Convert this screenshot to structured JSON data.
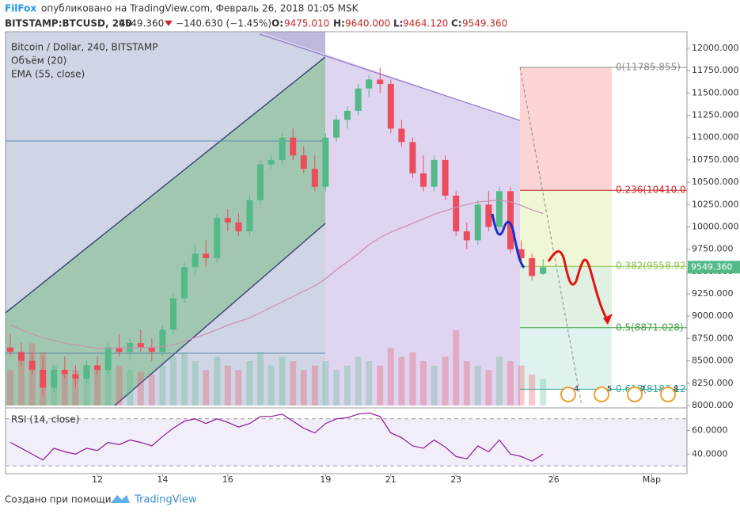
{
  "header": {
    "author": "FilFox",
    "published": "опубликовано на TradingView.com, Февраль 26, 2018 01:05 MSK",
    "symbol": "BITSTAMP:BTCUSD, 240",
    "last": "9549.360",
    "change": "−140.630 (−1.45%)",
    "o_label": "O:",
    "o": "9475.010",
    "h_label": "H:",
    "h": "9640.000",
    "l_label": "L:",
    "l": "9464.120",
    "c_label": "C:",
    "c": "9549.360"
  },
  "footer": {
    "created": "Создано при помощи",
    "brand": "TradingView"
  },
  "chart_data": {
    "type": "candlestick",
    "title": "Bitcoin / Dollar, 240, BITSTAMP",
    "volume_label": "Объём (20)",
    "ema_label": "EMA (55, close)",
    "rsi_label": "RSI (14, close)",
    "up_color": "#53b987",
    "down_color": "#eb4d5c",
    "ema_color": "#c98fae",
    "rsi_color": "#8e1599",
    "x": [
      9.33,
      9.67,
      10,
      10.33,
      10.67,
      11,
      11.33,
      11.67,
      12,
      12.33,
      12.67,
      13,
      13.33,
      13.67,
      14,
      14.33,
      14.67,
      15,
      15.33,
      15.67,
      16,
      16.33,
      16.67,
      17,
      17.33,
      17.67,
      18,
      18.33,
      18.67,
      19,
      19.33,
      19.67,
      20,
      20.33,
      20.67,
      21,
      21.33,
      21.67,
      22,
      22.33,
      22.67,
      23,
      23.33,
      23.67,
      24,
      24.33,
      24.67,
      25,
      25.33,
      25.67
    ],
    "open": [
      8650,
      8600,
      8500,
      8400,
      8200,
      8400,
      8350,
      8300,
      8450,
      8400,
      8650,
      8600,
      8700,
      8650,
      8600,
      8850,
      9200,
      9550,
      9700,
      9650,
      10100,
      10050,
      9950,
      10300,
      10700,
      10750,
      11000,
      10800,
      10650,
      10450,
      11000,
      11200,
      11300,
      11550,
      11650,
      11600,
      11100,
      10950,
      10600,
      10450,
      10750,
      10350,
      9950,
      9850,
      10250,
      10000,
      10400,
      9750,
      9650,
      9475.01
    ],
    "high": [
      8800,
      8700,
      8600,
      8550,
      8450,
      8550,
      8450,
      8500,
      8550,
      8700,
      8800,
      8750,
      8850,
      8750,
      8900,
      9250,
      9600,
      9800,
      9850,
      10150,
      10200,
      10150,
      10350,
      10750,
      10800,
      11050,
      11100,
      10900,
      10800,
      11050,
      11250,
      11350,
      11600,
      11700,
      11780,
      11650,
      11200,
      11000,
      10800,
      10800,
      10800,
      10400,
      10050,
      10300,
      10400,
      10450,
      10450,
      9850,
      9700,
      9640
    ],
    "low": [
      8550,
      8450,
      8350,
      8100,
      8150,
      8300,
      8200,
      8250,
      8350,
      8350,
      8550,
      8500,
      8600,
      8500,
      8550,
      8800,
      9150,
      9450,
      9550,
      9600,
      9950,
      9900,
      9900,
      10250,
      10650,
      10700,
      10750,
      10600,
      10400,
      10400,
      10950,
      11100,
      11250,
      11450,
      11500,
      11050,
      10900,
      10550,
      10400,
      10400,
      10300,
      9900,
      9750,
      9800,
      9950,
      9950,
      9700,
      9600,
      9400,
      9464.12
    ],
    "close": [
      8600,
      8500,
      8400,
      8200,
      8400,
      8350,
      8300,
      8450,
      8400,
      8650,
      8600,
      8700,
      8650,
      8600,
      8850,
      9200,
      9550,
      9700,
      9650,
      10100,
      10050,
      9950,
      10300,
      10700,
      10750,
      11000,
      10800,
      10650,
      10450,
      11000,
      11200,
      11300,
      11550,
      11650,
      11600,
      11100,
      10950,
      10600,
      10450,
      10750,
      10350,
      9950,
      9850,
      10250,
      10000,
      10400,
      9750,
      9650,
      9450,
      9549.36
    ],
    "volume": [
      40,
      55,
      70,
      60,
      45,
      35,
      40,
      38,
      42,
      50,
      45,
      40,
      38,
      35,
      45,
      55,
      60,
      50,
      40,
      55,
      45,
      40,
      50,
      60,
      45,
      55,
      50,
      40,
      45,
      50,
      40,
      45,
      55,
      50,
      45,
      65,
      55,
      60,
      50,
      45,
      55,
      85,
      50,
      45,
      40,
      55,
      50,
      45,
      35,
      30
    ],
    "ema": [
      8900,
      8850,
      8800,
      8760,
      8730,
      8700,
      8680,
      8660,
      8640,
      8640,
      8640,
      8645,
      8650,
      8650,
      8660,
      8680,
      8720,
      8760,
      8800,
      8850,
      8900,
      8940,
      8980,
      9040,
      9100,
      9160,
      9220,
      9280,
      9340,
      9420,
      9520,
      9610,
      9700,
      9800,
      9880,
      9940,
      9990,
      10040,
      10090,
      10140,
      10180,
      10220,
      10250,
      10280,
      10290,
      10300,
      10280,
      10240,
      10190,
      10150
    ],
    "rsi": [
      50,
      45,
      40,
      35,
      45,
      42,
      40,
      45,
      43,
      50,
      48,
      52,
      50,
      47,
      55,
      62,
      68,
      70,
      66,
      70,
      67,
      63,
      66,
      72,
      72,
      74,
      68,
      62,
      58,
      66,
      70,
      71,
      74,
      75,
      72,
      58,
      54,
      47,
      45,
      52,
      46,
      38,
      36,
      47,
      42,
      52,
      40,
      38,
      34,
      40
    ],
    "xlim": [
      9.184,
      30.083
    ],
    "xticks": [
      12,
      14,
      16,
      19,
      21,
      23,
      26,
      {
        "value": 29,
        "label": "Мар"
      }
    ],
    "ylim": [
      8000,
      12186
    ],
    "yticks": [
      {
        "value": 8000,
        "label": "8000.000"
      },
      {
        "value": 8250,
        "label": "8250.000"
      },
      {
        "value": 8500,
        "label": "8500.000"
      },
      {
        "value": 8750,
        "label": "8750.000"
      },
      {
        "value": 9000,
        "label": "9000.000"
      },
      {
        "value": 9250,
        "label": "9250.000"
      },
      {
        "value": 9500,
        "label": "9500.000"
      },
      {
        "value": 9750,
        "label": "9750.000"
      },
      {
        "value": 10000,
        "label": "10000.000"
      },
      {
        "value": 10250,
        "label": "10250.000"
      },
      {
        "value": 10500,
        "label": "10500.000"
      },
      {
        "value": 10750,
        "label": "10750.000"
      },
      {
        "value": 11000,
        "label": "11000.000"
      },
      {
        "value": 11250,
        "label": "11250.000"
      },
      {
        "value": 11500,
        "label": "11500.000"
      },
      {
        "value": 11750,
        "label": "11750.000"
      },
      {
        "value": 12000,
        "label": "12000.000"
      }
    ],
    "volume_lim": [
      0,
      100
    ],
    "rsi_ylim": [
      23.4,
      78.6
    ],
    "rsi_yticks": [
      {
        "value": 40,
        "label": "40.0000"
      },
      {
        "value": 60,
        "label": "60.0000"
      }
    ],
    "rsi_bands": [
      70,
      30
    ],
    "last_price": {
      "value": 9549.36,
      "label": "9549.360"
    },
    "fib_levels": [
      {
        "value": 11785.855,
        "label": "0(11785.855)",
        "color": "#8c8c8c"
      },
      {
        "value": 10410.057,
        "label": "0.236(10410.057)",
        "color": "#c62828"
      },
      {
        "value": 9558.927,
        "label": "0.382(9558.927)",
        "color": "#8bc34a"
      },
      {
        "value": 8871.028,
        "label": "0.5(8871.028)",
        "color": "#43a047"
      },
      {
        "value": 8183.129,
        "label": "0.618(8183.129)",
        "color": "#26a69a"
      }
    ],
    "fib_fills": [
      "rgba(239,83,80,0.25)",
      "rgba(205,230,120,0.3)",
      "rgba(102,187,106,0.2)",
      "rgba(38,166,154,0.15)"
    ],
    "event_badges": [
      "4",
      "5",
      "7",
      "8"
    ]
  }
}
